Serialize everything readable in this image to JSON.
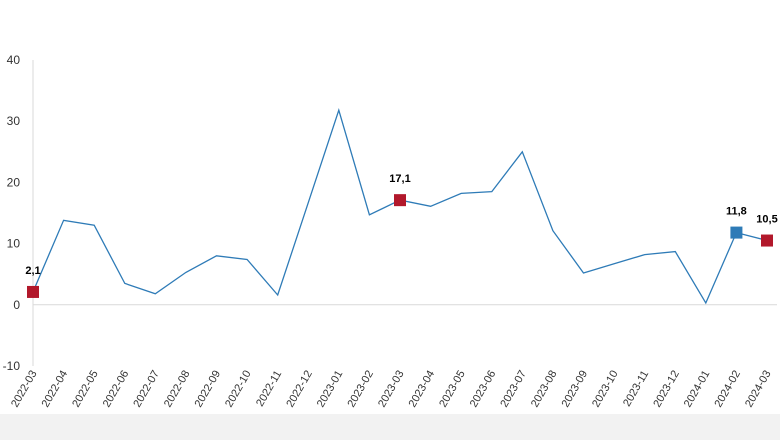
{
  "chart_data": {
    "type": "line",
    "title": "",
    "xlabel": "",
    "ylabel": "",
    "ylim": [
      -10,
      40
    ],
    "yticks": [
      -10,
      0,
      10,
      20,
      30,
      40
    ],
    "grid": false,
    "categories": [
      "2022-03",
      "2022-04",
      "2022-05",
      "2022-06",
      "2022-07",
      "2022-08",
      "2022-09",
      "2022-10",
      "2022-11",
      "2022-12",
      "2023-01",
      "2023-02",
      "2023-03",
      "2023-04",
      "2023-05",
      "2023-06",
      "2023-07",
      "2023-08",
      "2023-09",
      "2023-10",
      "2023-11",
      "2023-12",
      "2024-01",
      "2024-02",
      "2024-03"
    ],
    "series": [
      {
        "values": [
          2.1,
          13.8,
          13.0,
          3.5,
          1.8,
          5.3,
          8.0,
          7.4,
          1.6,
          16.7,
          31.8,
          14.7,
          17.1,
          16.1,
          18.2,
          18.5,
          25.0,
          12.1,
          5.2,
          6.7,
          8.2,
          8.7,
          0.3,
          11.8,
          10.5
        ],
        "color": "#2e7bb7"
      }
    ],
    "highlights": [
      {
        "index": 0,
        "label": "2,1",
        "color": "#b2182b"
      },
      {
        "index": 12,
        "label": "17,1",
        "color": "#b2182b"
      },
      {
        "index": 23,
        "label": "11,8",
        "color": "#2e7bb7"
      },
      {
        "index": 24,
        "label": "10,5",
        "color": "#b2182b"
      }
    ]
  }
}
